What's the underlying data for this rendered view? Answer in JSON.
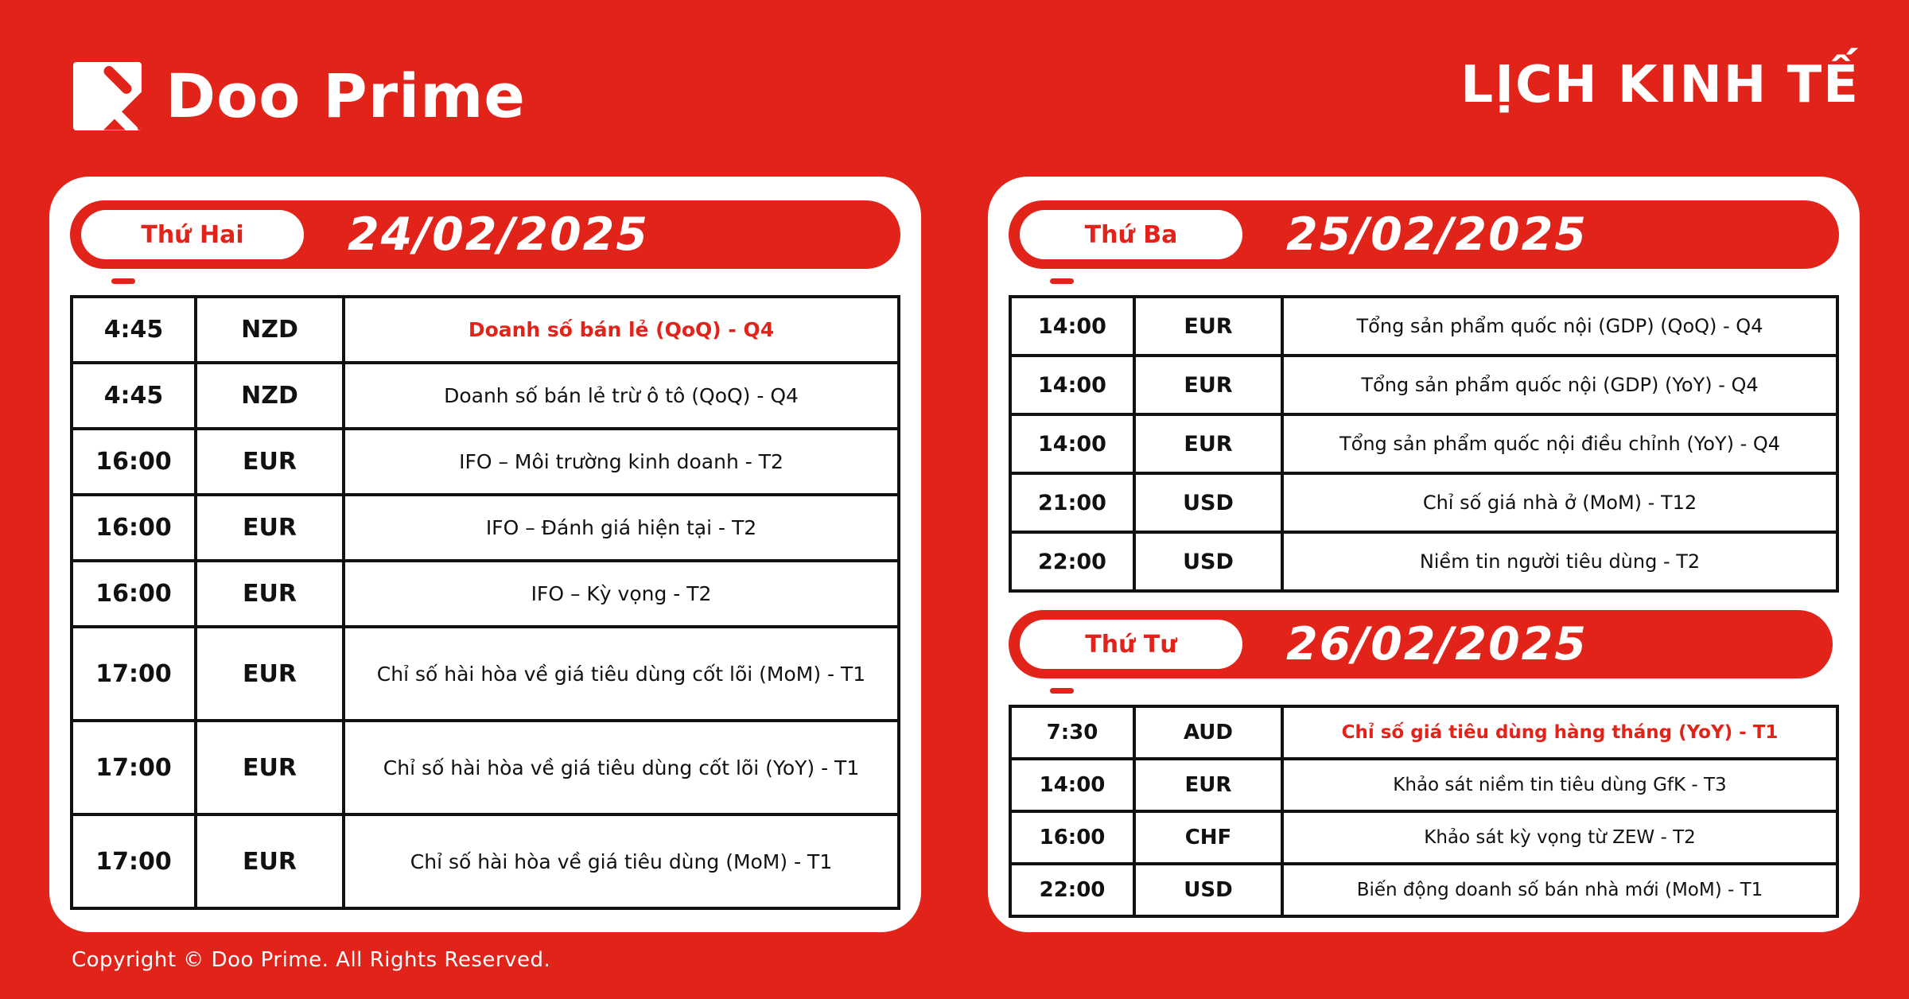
{
  "brand": {
    "logo_text": "Doo Prime",
    "page_title": "LỊCH KINH TẾ",
    "copyright": "Copyright © Doo Prime. All Rights Reserved."
  },
  "colors": {
    "background_red": "#e2231a",
    "highlight_red": "#e2231a",
    "table_ink": "#111111",
    "card_white": "#ffffff"
  },
  "days": [
    {
      "label": "Thứ Hai",
      "date": "24/02/2025",
      "rows": [
        {
          "time": "4:45",
          "currency": "NZD",
          "event": "Doanh số bán lẻ (QoQ) - Q4",
          "highlight": true
        },
        {
          "time": "4:45",
          "currency": "NZD",
          "event": "Doanh số bán lẻ trừ ô tô (QoQ) - Q4",
          "highlight": false
        },
        {
          "time": "16:00",
          "currency": "EUR",
          "event": "IFO – Môi trường kinh doanh - T2",
          "highlight": false
        },
        {
          "time": "16:00",
          "currency": "EUR",
          "event": "IFO – Đánh giá hiện tại - T2",
          "highlight": false
        },
        {
          "time": "16:00",
          "currency": "EUR",
          "event": "IFO – Kỳ vọng - T2",
          "highlight": false
        },
        {
          "time": "17:00",
          "currency": "EUR",
          "event": "Chỉ số hài hòa về giá tiêu dùng cốt lõi (MoM) - T1",
          "highlight": false
        },
        {
          "time": "17:00",
          "currency": "EUR",
          "event": "Chỉ số hài hòa về giá tiêu dùng cốt lõi (YoY) - T1",
          "highlight": false
        },
        {
          "time": "17:00",
          "currency": "EUR",
          "event": "Chỉ số hài hòa về giá tiêu dùng (MoM) - T1",
          "highlight": false
        }
      ]
    },
    {
      "label": "Thứ Ba",
      "date": "25/02/2025",
      "rows": [
        {
          "time": "14:00",
          "currency": "EUR",
          "event": "Tổng sản phẩm quốc nội (GDP) (QoQ) - Q4",
          "highlight": false
        },
        {
          "time": "14:00",
          "currency": "EUR",
          "event": "Tổng sản phẩm quốc nội (GDP) (YoY) - Q4",
          "highlight": false
        },
        {
          "time": "14:00",
          "currency": "EUR",
          "event": "Tổng sản phẩm quốc nội điều chỉnh (YoY) - Q4",
          "highlight": false
        },
        {
          "time": "21:00",
          "currency": "USD",
          "event": "Chỉ số giá nhà ở (MoM) - T12",
          "highlight": false
        },
        {
          "time": "22:00",
          "currency": "USD",
          "event": "Niềm tin người tiêu dùng - T2",
          "highlight": false
        }
      ]
    },
    {
      "label": "Thứ Tư",
      "date": "26/02/2025",
      "rows": [
        {
          "time": "7:30",
          "currency": "AUD",
          "event": "Chỉ số giá tiêu dùng hàng tháng (YoY) - T1",
          "highlight": true
        },
        {
          "time": "14:00",
          "currency": "EUR",
          "event": "Khảo sát niềm tin tiêu dùng GfK - T3",
          "highlight": false
        },
        {
          "time": "16:00",
          "currency": "CHF",
          "event": "Khảo sát kỳ vọng từ ZEW - T2",
          "highlight": false
        },
        {
          "time": "22:00",
          "currency": "USD",
          "event": "Biến động doanh số bán nhà mới (MoM) - T1",
          "highlight": false
        }
      ]
    }
  ]
}
